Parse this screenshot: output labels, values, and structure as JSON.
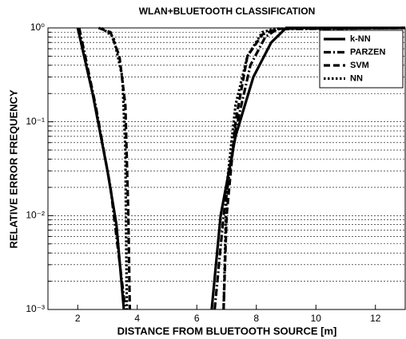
{
  "chart_data": {
    "type": "line",
    "title": "WLAN+BLUETOOTH CLASSIFICATION",
    "xlabel": "DISTANCE FROM BLUETOOTH SOURCE [m]",
    "ylabel": "RELATIVE ERROR FREQUENCY",
    "xlim": [
      1,
      13
    ],
    "xticks": [
      2,
      4,
      6,
      8,
      10,
      12
    ],
    "ylim": [
      0.001,
      1
    ],
    "log_y": true,
    "yticks": [
      {
        "value": 0.001,
        "label": "10⁻³"
      },
      {
        "value": 0.01,
        "label": "10⁻²"
      },
      {
        "value": 0.1,
        "label": "10⁻¹"
      },
      {
        "value": 1,
        "label": "10⁰"
      }
    ],
    "yminor_ticks": [
      0.002,
      0.003,
      0.004,
      0.005,
      0.006,
      0.007,
      0.008,
      0.009,
      0.02,
      0.03,
      0.04,
      0.05,
      0.06,
      0.07,
      0.08,
      0.09,
      0.2,
      0.3,
      0.4,
      0.5,
      0.6,
      0.7,
      0.8,
      0.9
    ],
    "grid": true,
    "legend": "upper right",
    "series": [
      {
        "name": "k-NN",
        "color": "#000000",
        "style": "solid",
        "x": [
          2,
          2.5,
          3,
          3.3,
          3.55,
          null,
          6.5,
          6.8,
          7.3,
          7.9,
          8.5,
          9,
          13
        ],
        "values": [
          1,
          0.2,
          0.03,
          0.008,
          0.001,
          null,
          0.001,
          0.01,
          0.07,
          0.3,
          0.7,
          1,
          1
        ]
      },
      {
        "name": "PARZEN",
        "color": "#000000",
        "style": "dashdot",
        "x": [
          2.05,
          2.6,
          3.1,
          3.6,
          null,
          6.6,
          6.9,
          7.3,
          7.8,
          8.3,
          8.7,
          13
        ],
        "values": [
          1,
          0.15,
          0.02,
          0.001,
          null,
          0.001,
          0.01,
          0.08,
          0.4,
          0.8,
          0.97,
          1
        ]
      },
      {
        "name": "SVM",
        "color": "#000000",
        "style": "dashed",
        "x": [
          2.7,
          3.1,
          3.4,
          3.6,
          3.7,
          3.75,
          null,
          6.9,
          7.0,
          7.3,
          7.7,
          8.2,
          8.7,
          13
        ],
        "values": [
          1,
          0.9,
          0.5,
          0.15,
          0.01,
          0.001,
          null,
          0.001,
          0.01,
          0.1,
          0.5,
          0.85,
          0.98,
          1
        ]
      },
      {
        "name": "NN",
        "color": "#000000",
        "style": "dotted",
        "x": [
          2.8,
          3.2,
          3.5,
          3.6,
          3.65,
          null,
          6.9,
          7.0,
          7.3,
          7.7,
          8.2,
          8.6,
          13
        ],
        "values": [
          1,
          0.8,
          0.3,
          0.05,
          0.001,
          null,
          0.001,
          0.02,
          0.15,
          0.5,
          0.9,
          0.98,
          1
        ]
      }
    ]
  }
}
